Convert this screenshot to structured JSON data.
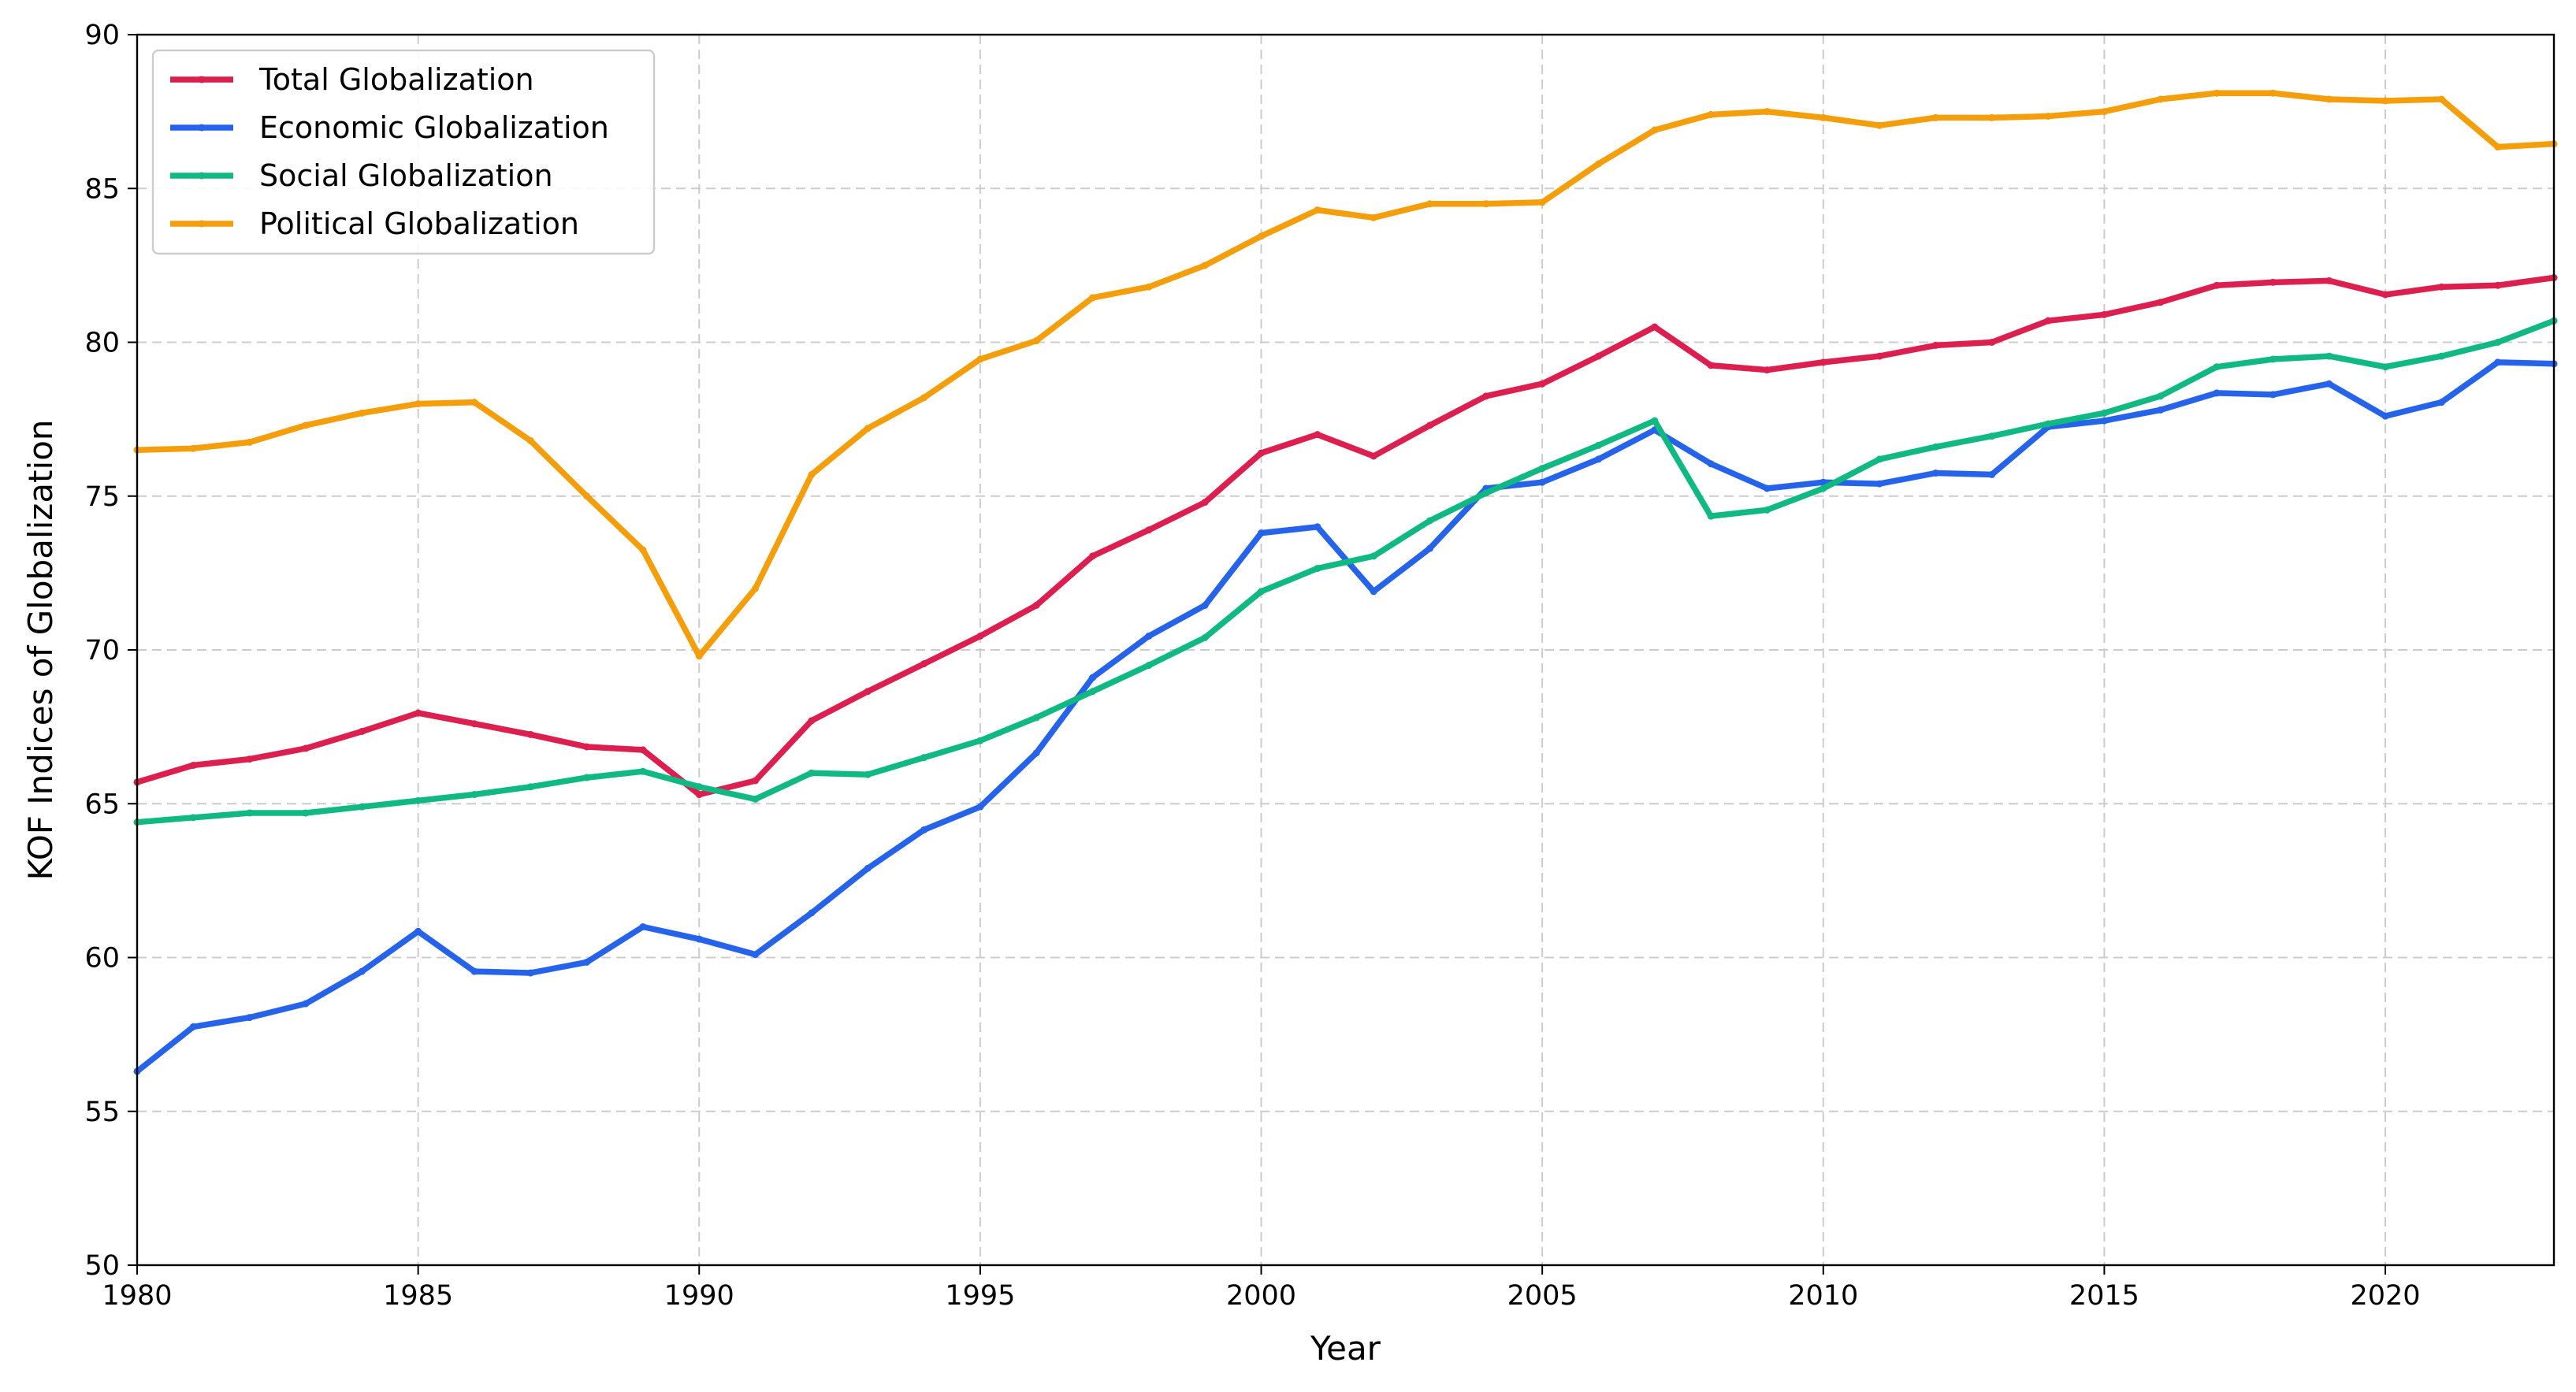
{
  "chart_data": {
    "type": "line",
    "title": "",
    "xlabel": "Year",
    "ylabel": "KOF Indices of Globalization",
    "xlim": [
      1980,
      2023
    ],
    "ylim": [
      50,
      90
    ],
    "x_ticks": [
      1980,
      1985,
      1990,
      1995,
      2000,
      2005,
      2010,
      2015,
      2020
    ],
    "y_ticks": [
      50,
      55,
      60,
      65,
      70,
      75,
      80,
      85,
      90
    ],
    "grid": true,
    "legend_position": "top-left",
    "x": [
      1980,
      1981,
      1982,
      1983,
      1984,
      1985,
      1986,
      1987,
      1988,
      1989,
      1990,
      1991,
      1992,
      1993,
      1994,
      1995,
      1996,
      1997,
      1998,
      1999,
      2000,
      2001,
      2002,
      2003,
      2004,
      2005,
      2006,
      2007,
      2008,
      2009,
      2010,
      2011,
      2012,
      2013,
      2014,
      2015,
      2016,
      2017,
      2018,
      2019,
      2020,
      2021,
      2022,
      2023
    ],
    "series": [
      {
        "name": "Total Globalization",
        "color": "#dc1f4e",
        "values": [
          65.7,
          66.25,
          66.45,
          66.8,
          67.35,
          67.95,
          67.6,
          67.25,
          66.85,
          66.75,
          65.3,
          65.75,
          67.7,
          68.65,
          69.55,
          70.45,
          71.45,
          73.05,
          73.9,
          74.8,
          76.4,
          77.0,
          76.3,
          77.3,
          78.25,
          78.65,
          79.55,
          80.5,
          79.25,
          79.1,
          79.35,
          79.55,
          79.9,
          80.0,
          80.7,
          80.9,
          81.3,
          81.85,
          81.95,
          82.0,
          81.55,
          81.8,
          81.85,
          82.1
        ]
      },
      {
        "name": "Economic Globalization",
        "color": "#2563eb",
        "values": [
          56.3,
          57.75,
          58.05,
          58.5,
          59.55,
          60.85,
          59.55,
          59.5,
          59.85,
          61.0,
          60.6,
          60.1,
          61.45,
          62.9,
          64.15,
          64.9,
          66.65,
          69.1,
          70.45,
          71.45,
          73.8,
          74.0,
          71.9,
          73.3,
          75.25,
          75.45,
          76.2,
          77.15,
          76.05,
          75.25,
          75.45,
          75.4,
          75.75,
          75.7,
          77.25,
          77.45,
          77.8,
          78.35,
          78.3,
          78.65,
          77.6,
          78.05,
          79.35,
          79.3
        ]
      },
      {
        "name": "Social Globalization",
        "color": "#10b981",
        "values": [
          64.4,
          64.55,
          64.7,
          64.7,
          64.9,
          65.1,
          65.3,
          65.55,
          65.85,
          66.05,
          65.55,
          65.15,
          66.0,
          65.95,
          66.5,
          67.05,
          67.8,
          68.65,
          69.5,
          70.4,
          71.9,
          72.65,
          73.05,
          74.2,
          75.1,
          75.9,
          76.65,
          77.45,
          74.35,
          74.55,
          75.25,
          76.2,
          76.6,
          76.95,
          77.35,
          77.7,
          78.25,
          79.2,
          79.45,
          79.55,
          79.2,
          79.55,
          80.0,
          80.7
        ]
      },
      {
        "name": "Political Globalization",
        "color": "#f59e0b",
        "values": [
          76.5,
          76.55,
          76.75,
          77.3,
          77.7,
          78.0,
          78.05,
          76.8,
          75.0,
          73.25,
          69.8,
          72.0,
          75.7,
          77.2,
          78.2,
          79.45,
          80.05,
          81.45,
          81.8,
          82.5,
          83.45,
          84.3,
          84.05,
          84.5,
          84.5,
          84.55,
          85.8,
          86.9,
          87.4,
          87.5,
          87.3,
          87.05,
          87.3,
          87.3,
          87.35,
          87.5,
          87.9,
          88.1,
          88.1,
          87.9,
          87.85,
          87.9,
          86.35,
          86.45
        ]
      }
    ]
  }
}
